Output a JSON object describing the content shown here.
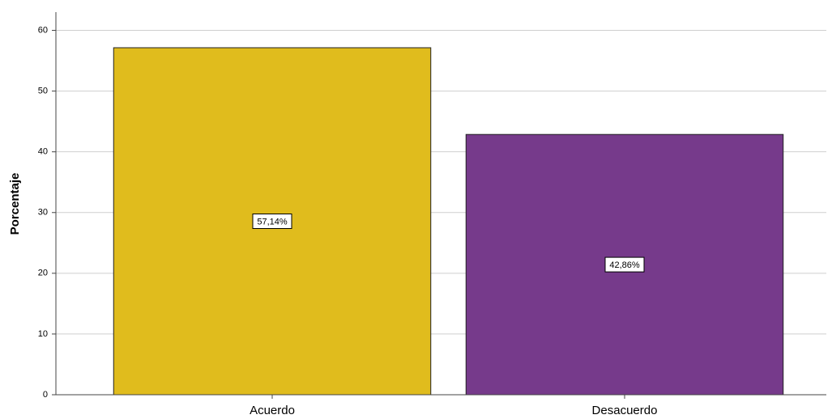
{
  "chart_data": {
    "type": "bar",
    "y_label": "Porcentaje",
    "categories": [
      "Acuerdo",
      "Desacuerdo"
    ],
    "values": [
      57.14,
      42.86
    ],
    "value_labels": [
      "57,14%",
      "42,86%"
    ],
    "colors": [
      "#e0bc1d",
      "#763a8b"
    ],
    "ylim": [
      0,
      63
    ],
    "yticks": [
      0,
      10,
      20,
      30,
      40,
      50,
      60
    ],
    "grid": true
  }
}
